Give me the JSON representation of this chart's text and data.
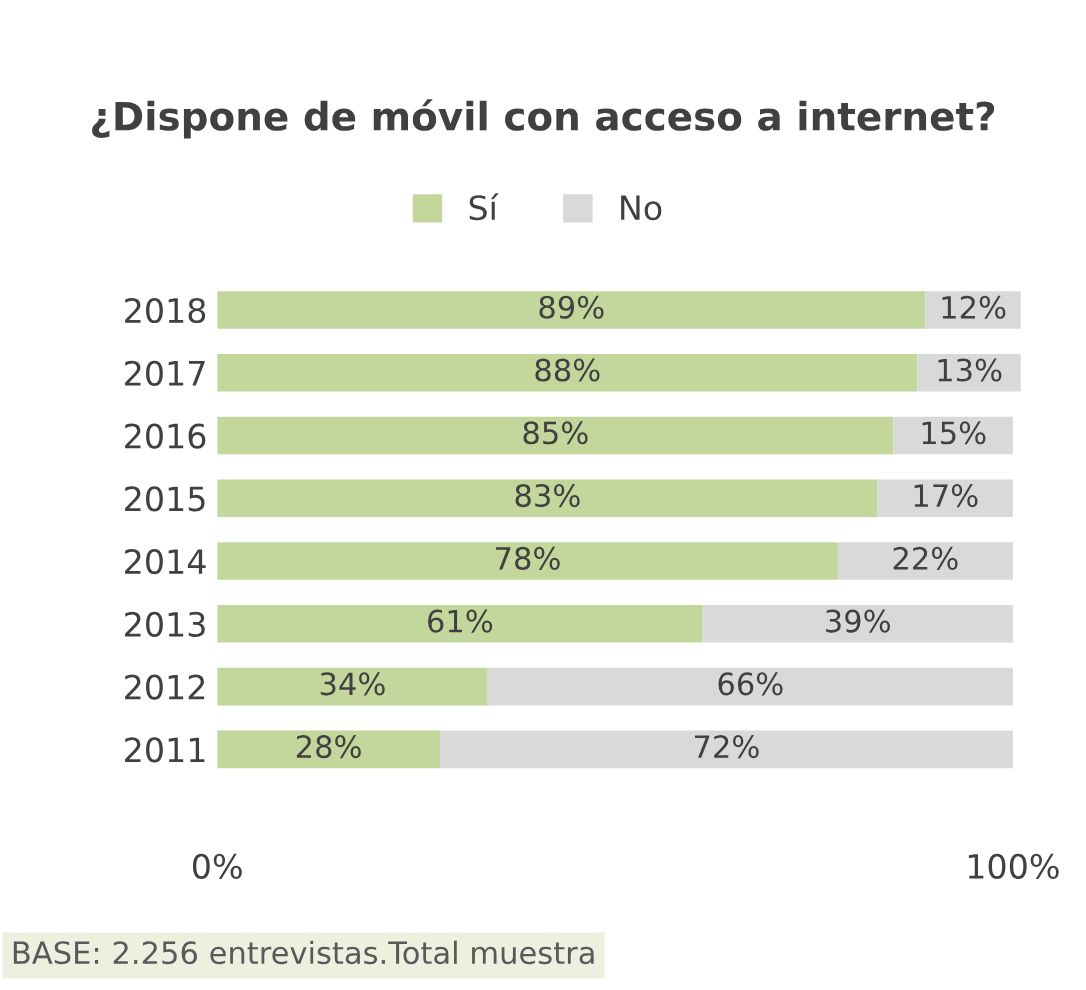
{
  "chart_data": {
    "type": "bar",
    "orientation": "horizontal",
    "stacked": true,
    "title": "¿Dispone de móvil con acceso a internet?",
    "categories": [
      "2018",
      "2017",
      "2016",
      "2015",
      "2014",
      "2013",
      "2012",
      "2011"
    ],
    "series": [
      {
        "name": "Sí",
        "color": "#c3d69b",
        "values": [
          89,
          88,
          85,
          83,
          78,
          61,
          34,
          28
        ],
        "value_labels": [
          "89%",
          "88%",
          "85%",
          "83%",
          "78%",
          "61%",
          "34%",
          "28%"
        ]
      },
      {
        "name": "No",
        "color": "#d9d9d9",
        "values": [
          12,
          13,
          15,
          17,
          22,
          39,
          66,
          72
        ],
        "value_labels": [
          "12%",
          "13%",
          "15%",
          "17%",
          "22%",
          "39%",
          "66%",
          "72%"
        ]
      }
    ],
    "xlim": [
      0,
      101
    ],
    "xticks": [
      {
        "value": 0,
        "label": "0%"
      },
      {
        "value": 100,
        "label": "100%"
      }
    ],
    "grid": false,
    "legend": "top",
    "annotations": [
      "BASE: 2.256 entrevistas.Total muestra"
    ]
  }
}
